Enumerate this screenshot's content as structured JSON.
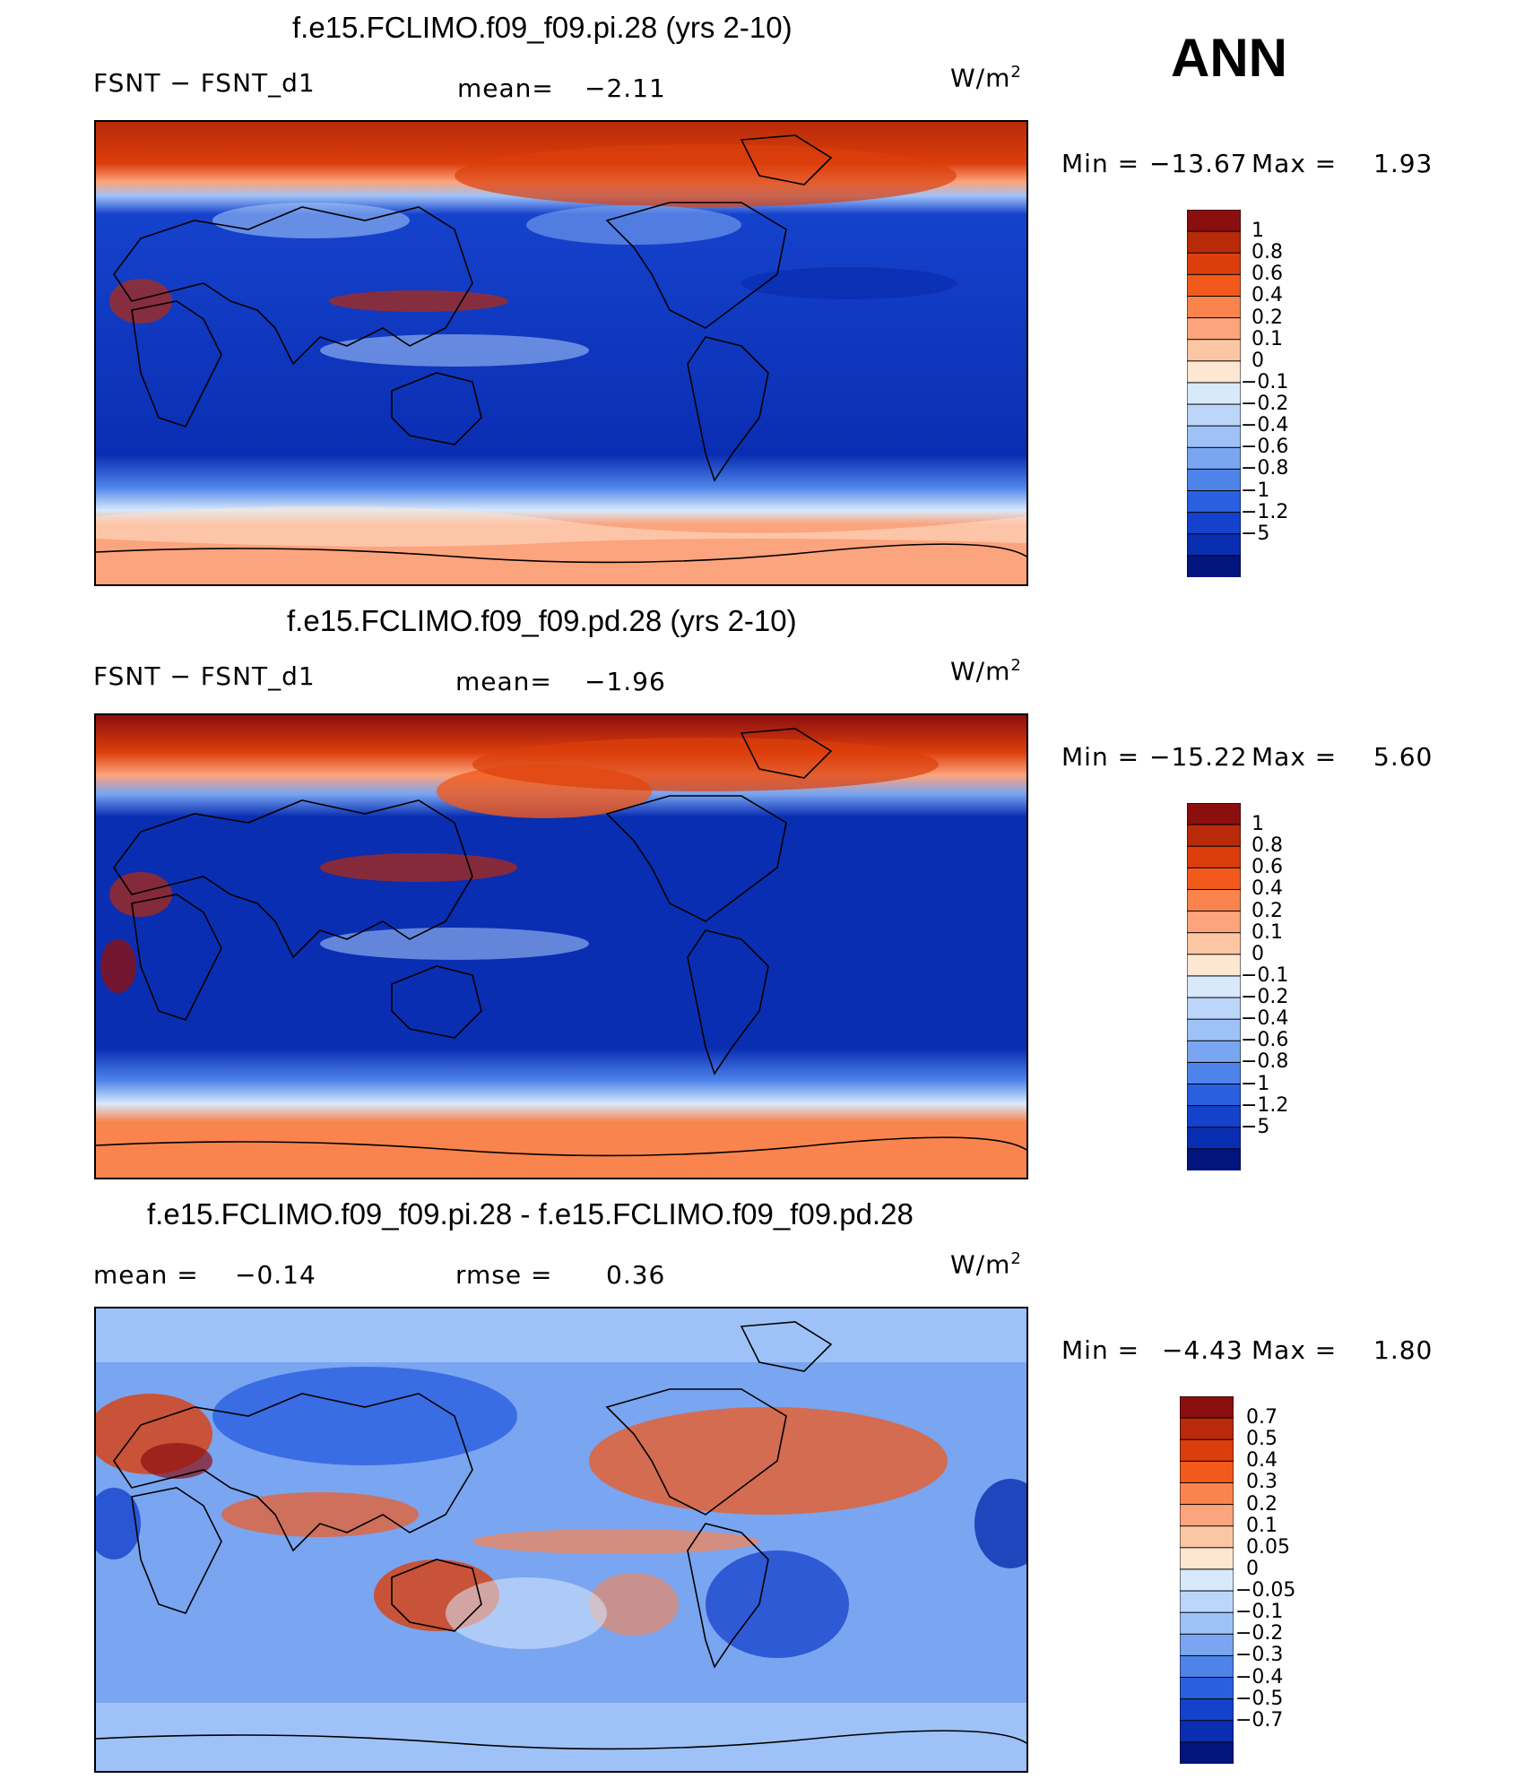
{
  "season": "ANN",
  "units_prefix": "W/m",
  "units_exp": "2",
  "min_label": "Min =",
  "max_label": "Max =",
  "panels": [
    {
      "title": "f.e15.FCLIMO.f09_f09.pi.28 (yrs 2-10)",
      "left_text": "FSNT  −  FSNT_d1",
      "stat_label": "mean=",
      "stat_value": "−2.11",
      "min_value": "−13.67",
      "max_value": "1.93"
    },
    {
      "title": "f.e15.FCLIMO.f09_f09.pd.28 (yrs 2-10)",
      "left_text": "FSNT  −  FSNT_d1",
      "stat_label": "mean=",
      "stat_value": "−1.96",
      "min_value": "−15.22",
      "max_value": "5.60"
    },
    {
      "title": "f.e15.FCLIMO.f09_f09.pi.28 - f.e15.FCLIMO.f09_f09.pd.28",
      "left_label": "mean =",
      "left_value": "−0.14",
      "stat_label": "rmse =",
      "stat_value": "0.36",
      "min_value": "−4.43",
      "max_value": "1.80"
    }
  ],
  "chart_data": [
    {
      "type": "heatmap",
      "title": "f.e15.FCLIMO.f09_f09.pi.28 (yrs 2-10)",
      "variable": "FSNT - FSNT_d1",
      "units": "W/m2",
      "mean": -2.11,
      "min": -13.67,
      "max": 1.93,
      "colorbar_levels": [
        "1",
        "0.8",
        "0.6",
        "0.4",
        "0.2",
        "0.1",
        "0",
        "−0.1",
        "−0.2",
        "−0.4",
        "−0.6",
        "−0.8",
        "−1",
        "−1.2",
        "−5"
      ],
      "colorbar_colors": [
        "#8c0f0f",
        "#b82a09",
        "#dc3e0b",
        "#f25a1c",
        "#f9844e",
        "#fca47d",
        "#fcc6a4",
        "#fde6d2",
        "#d8e9fb",
        "#bcd6fa",
        "#9ec2f7",
        "#7aa5f0",
        "#4e84ea",
        "#2a5fe0",
        "#1542cc",
        "#0a2eb2",
        "#02157e"
      ]
    },
    {
      "type": "heatmap",
      "title": "f.e15.FCLIMO.f09_f09.pd.28 (yrs 2-10)",
      "variable": "FSNT - FSNT_d1",
      "units": "W/m2",
      "mean": -1.96,
      "min": -15.22,
      "max": 5.6,
      "colorbar_levels": [
        "1",
        "0.8",
        "0.6",
        "0.4",
        "0.2",
        "0.1",
        "0",
        "−0.1",
        "−0.2",
        "−0.4",
        "−0.6",
        "−0.8",
        "−1",
        "−1.2",
        "−5"
      ],
      "colorbar_colors": [
        "#8c0f0f",
        "#b82a09",
        "#dc3e0b",
        "#f25a1c",
        "#f9844e",
        "#fca47d",
        "#fcc6a4",
        "#fde6d2",
        "#d8e9fb",
        "#bcd6fa",
        "#9ec2f7",
        "#7aa5f0",
        "#4e84ea",
        "#2a5fe0",
        "#1542cc",
        "#0a2eb2",
        "#02157e"
      ]
    },
    {
      "type": "heatmap",
      "title": "f.e15.FCLIMO.f09_f09.pi.28 - f.e15.FCLIMO.f09_f09.pd.28",
      "units": "W/m2",
      "mean": -0.14,
      "rmse": 0.36,
      "min": -4.43,
      "max": 1.8,
      "colorbar_levels": [
        "0.7",
        "0.5",
        "0.4",
        "0.3",
        "0.2",
        "0.1",
        "0.05",
        "0",
        "−0.05",
        "−0.1",
        "−0.2",
        "−0.3",
        "−0.4",
        "−0.5",
        "−0.7"
      ],
      "colorbar_colors": [
        "#8c0f0f",
        "#b82a09",
        "#dc3e0b",
        "#f25a1c",
        "#f9844e",
        "#fca47d",
        "#fcc6a4",
        "#fde6d2",
        "#d8e9fb",
        "#bcd6fa",
        "#9ec2f7",
        "#7aa5f0",
        "#4e84ea",
        "#2a5fe0",
        "#1542cc",
        "#0a2eb2",
        "#02157e"
      ]
    }
  ]
}
